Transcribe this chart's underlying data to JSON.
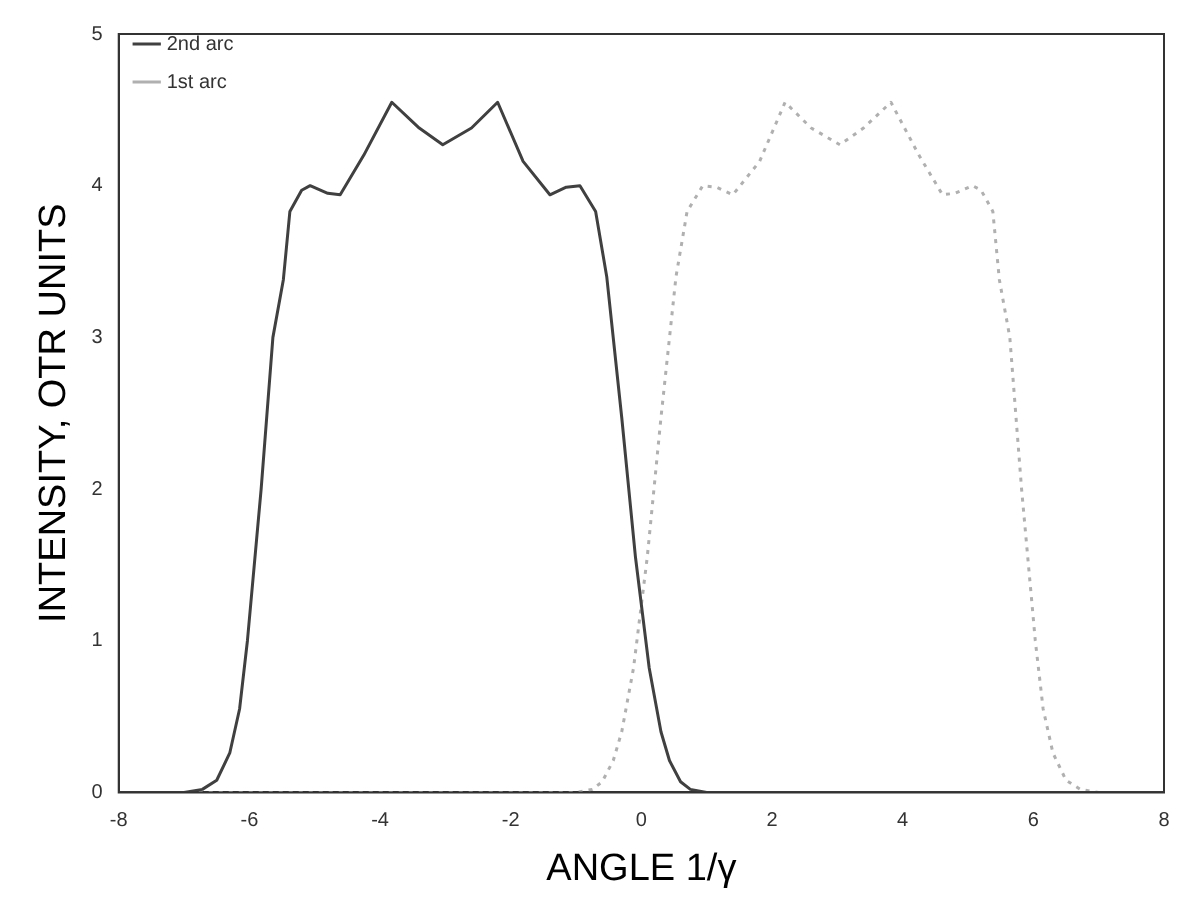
{
  "chart_data": {
    "type": "line",
    "xlabel": "ANGLE 1/γ",
    "ylabel": "INTENSITY, OTR UNITS",
    "xlim": [
      -8,
      8
    ],
    "ylim": [
      0,
      5
    ],
    "xticks": [
      -8,
      -6,
      -4,
      -2,
      0,
      2,
      4,
      6,
      8
    ],
    "yticks": [
      0,
      1,
      2,
      3,
      4,
      5
    ],
    "grid": false,
    "legend": "top left",
    "marker": "none",
    "series": [
      {
        "name": "2nd arc",
        "color": "#404040",
        "line_style": "solid",
        "x": [
          -8,
          -7,
          -6.72,
          -6.5,
          -6.3,
          -6.15,
          -6.03,
          -5.82,
          -5.64,
          -5.48,
          -5.38,
          -5.2,
          -5.07,
          -4.8,
          -4.61,
          -4.25,
          -3.82,
          -3.4,
          -3.04,
          -2.6,
          -2.2,
          -1.81,
          -1.4,
          -1.15,
          -0.94,
          -0.7,
          -0.53,
          -0.3,
          -0.09,
          0.12,
          0.3,
          0.43,
          0.6,
          0.75,
          1,
          2,
          4,
          6,
          8
        ],
        "values": [
          0,
          0,
          0.02,
          0.08,
          0.26,
          0.55,
          1.0,
          2.0,
          3.0,
          3.38,
          3.83,
          3.97,
          4.0,
          3.95,
          3.94,
          4.2,
          4.55,
          4.38,
          4.27,
          4.38,
          4.55,
          4.16,
          3.94,
          3.99,
          4.0,
          3.83,
          3.4,
          2.47,
          1.55,
          0.82,
          0.4,
          0.21,
          0.07,
          0.02,
          0,
          0,
          0,
          0,
          0
        ]
      },
      {
        "name": "1st arc",
        "color": "#b0b0b0",
        "line_style": "dotted",
        "x": [
          -8,
          -6,
          -4,
          -2,
          -1,
          -0.75,
          -0.6,
          -0.43,
          -0.3,
          -0.12,
          0.09,
          0.3,
          0.53,
          0.7,
          0.94,
          1.15,
          1.4,
          1.81,
          2.2,
          2.6,
          3.04,
          3.4,
          3.82,
          4.25,
          4.61,
          4.8,
          5.07,
          5.2,
          5.38,
          5.48,
          5.64,
          5.82,
          6.03,
          6.15,
          6.3,
          6.5,
          6.72,
          7,
          8
        ],
        "values": [
          0,
          0,
          0,
          0,
          0,
          0.02,
          0.07,
          0.21,
          0.4,
          0.82,
          1.55,
          2.47,
          3.4,
          3.83,
          4.0,
          3.99,
          3.94,
          4.16,
          4.55,
          4.38,
          4.27,
          4.38,
          4.55,
          4.2,
          3.94,
          3.95,
          4.0,
          3.97,
          3.83,
          3.38,
          3.0,
          2.0,
          1.0,
          0.55,
          0.26,
          0.08,
          0.02,
          0,
          0
        ]
      }
    ]
  }
}
